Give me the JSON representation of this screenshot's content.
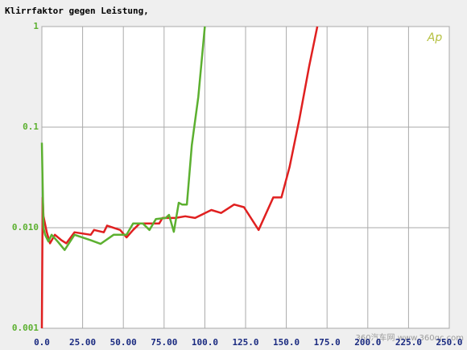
{
  "chart_data": {
    "type": "line",
    "title": "Klirrfaktor gegen Leistung,",
    "logo": "Ap",
    "watermark": "360汽车网 www.360qc.com",
    "yscale": "log",
    "grid": true,
    "xlim": [
      0,
      250
    ],
    "xticks": [
      {
        "value": 0,
        "label": "0.0"
      },
      {
        "value": 25,
        "label": "25.00"
      },
      {
        "value": 50,
        "label": "50.00"
      },
      {
        "value": 75,
        "label": "75.00"
      },
      {
        "value": 100,
        "label": "100.0"
      },
      {
        "value": 125,
        "label": "125.0"
      },
      {
        "value": 150,
        "label": "150.0"
      },
      {
        "value": 175,
        "label": "175.0"
      },
      {
        "value": 200,
        "label": "200.0"
      },
      {
        "value": 225,
        "label": "225.0"
      },
      {
        "value": 250,
        "label": "250.0"
      }
    ],
    "ylim": [
      0.001,
      1
    ],
    "yticks": [
      0.001,
      {
        "value": 0.01,
        "label": "0.010"
      },
      0.1,
      1
    ],
    "series": [
      {
        "color": "#e02020",
        "x": [
          0,
          0.5,
          1,
          3,
          5,
          8,
          12,
          15,
          20,
          30,
          32,
          38,
          40,
          48,
          52,
          56,
          60,
          72,
          74,
          82,
          88,
          94,
          104,
          110,
          118,
          124,
          133,
          142,
          147,
          152,
          158,
          164,
          169
        ],
        "values": [
          0.001,
          0.02,
          0.013,
          0.009,
          0.007,
          0.0085,
          0.0075,
          0.007,
          0.009,
          0.0085,
          0.0095,
          0.009,
          0.0105,
          0.0095,
          0.008,
          0.0095,
          0.011,
          0.011,
          0.0125,
          0.0125,
          0.013,
          0.0125,
          0.015,
          0.014,
          0.017,
          0.016,
          0.0095,
          0.02,
          0.02,
          0.04,
          0.12,
          0.4,
          1
        ]
      },
      {
        "color": "#5cb030",
        "x": [
          0,
          1,
          2,
          4,
          6,
          10,
          14,
          20,
          30,
          36,
          44,
          52,
          56,
          62,
          66,
          70,
          76,
          78,
          81,
          84,
          86,
          89,
          92,
          96,
          100
        ],
        "values": [
          0.07,
          0.01,
          0.0085,
          0.0073,
          0.0085,
          0.0072,
          0.006,
          0.0085,
          0.0075,
          0.0069,
          0.0085,
          0.0085,
          0.011,
          0.011,
          0.0095,
          0.0122,
          0.0125,
          0.0134,
          0.0091,
          0.0177,
          0.017,
          0.017,
          0.066,
          0.2,
          1
        ]
      }
    ]
  }
}
